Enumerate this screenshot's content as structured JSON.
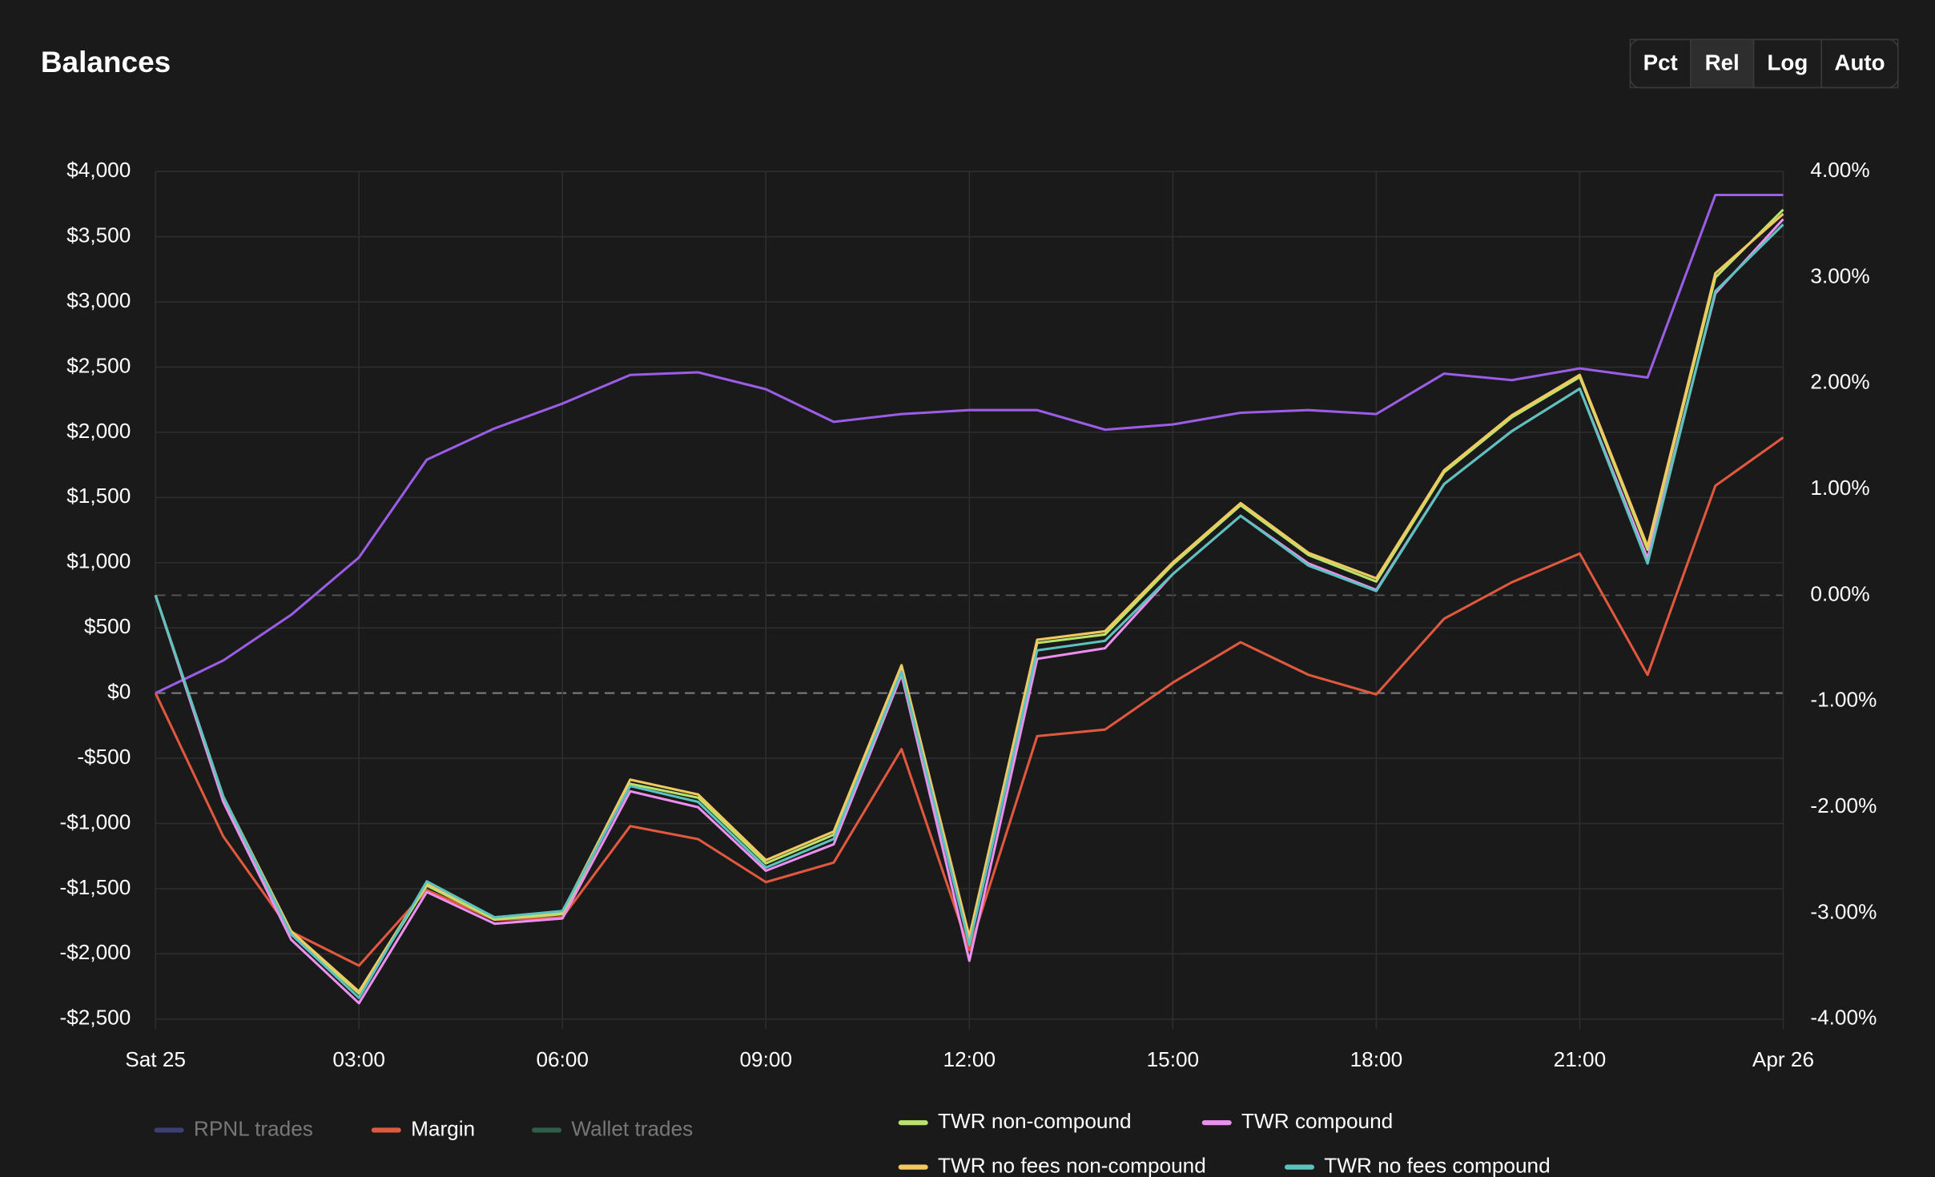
{
  "header": {
    "title": "Balances",
    "buttons": [
      "Pct",
      "Rel",
      "Log",
      "Auto"
    ],
    "active_button": "Rel"
  },
  "chart_data": {
    "type": "line",
    "x": [
      0,
      1,
      2,
      3,
      4,
      5,
      6,
      7,
      8,
      9,
      10,
      11,
      12,
      13,
      14,
      15,
      16,
      17,
      18,
      19,
      20,
      21,
      22,
      23,
      24
    ],
    "xlim": [
      0,
      24
    ],
    "xticks": [
      {
        "value": 0,
        "label": "Sat 25"
      },
      {
        "value": 3,
        "label": "03:00"
      },
      {
        "value": 6,
        "label": "06:00"
      },
      {
        "value": 9,
        "label": "09:00"
      },
      {
        "value": 12,
        "label": "12:00"
      },
      {
        "value": 15,
        "label": "15:00"
      },
      {
        "value": 18,
        "label": "18:00"
      },
      {
        "value": 21,
        "label": "21:00"
      },
      {
        "value": 24,
        "label": "Apr 26"
      }
    ],
    "ylim": [
      -2500,
      4000
    ],
    "yticks": [
      {
        "value": -2500,
        "label": "-$2,500"
      },
      {
        "value": -2000,
        "label": "-$2,000"
      },
      {
        "value": -1500,
        "label": "-$1,500"
      },
      {
        "value": -1000,
        "label": "-$1,000"
      },
      {
        "value": -500,
        "label": "-$500"
      },
      {
        "value": 0,
        "label": "$0"
      },
      {
        "value": 500,
        "label": "$500"
      },
      {
        "value": 1000,
        "label": "$1,000"
      },
      {
        "value": 1500,
        "label": "$1,500"
      },
      {
        "value": 2000,
        "label": "$2,000"
      },
      {
        "value": 2500,
        "label": "$2,500"
      },
      {
        "value": 3000,
        "label": "$3,000"
      },
      {
        "value": 3500,
        "label": "$3,500"
      },
      {
        "value": 4000,
        "label": "$4,000"
      }
    ],
    "y2lim": [
      -4,
      4
    ],
    "y2ticks": [
      {
        "value": -4,
        "label": "-4.00%"
      },
      {
        "value": -3,
        "label": "-3.00%"
      },
      {
        "value": -2,
        "label": "-2.00%"
      },
      {
        "value": -1,
        "label": "-1.00%"
      },
      {
        "value": 0,
        "label": "0.00%"
      },
      {
        "value": 1,
        "label": "1.00%"
      },
      {
        "value": 2,
        "label": "2.00%"
      },
      {
        "value": 3,
        "label": "3.00%"
      },
      {
        "value": 4,
        "label": "4.00%"
      }
    ],
    "grid": true,
    "series": [
      {
        "color": "#9b5de5",
        "values": [
          0,
          250,
          600,
          1040,
          1790,
          2030,
          2220,
          2440,
          2460,
          2330,
          2080,
          2140,
          2170,
          2170,
          2020,
          2060,
          2150,
          2170,
          2140,
          2450,
          2400,
          2490,
          2420,
          3820,
          3820
        ]
      },
      {
        "name": "RPNL trades",
        "color": "#3b3f75",
        "visible": false
      },
      {
        "name": "Margin",
        "color": "#e0583e",
        "values": [
          0,
          -1100,
          -1830,
          -2090,
          -1510,
          -1740,
          -1720,
          -1020,
          -1120,
          -1450,
          -1300,
          -430,
          -1970,
          -330,
          -280,
          80,
          390,
          140,
          -10,
          570,
          850,
          1070,
          140,
          1590,
          1960
        ]
      },
      {
        "name": "Wallet trades",
        "color": "#2e5e4a",
        "visible": false
      },
      {
        "name": "TWR non-compound",
        "color": "#b7e36b",
        "axis": "y2",
        "values": [
          0,
          -1.92,
          -3.19,
          -3.76,
          -2.74,
          -3.06,
          -3.01,
          -1.78,
          -1.91,
          -2.53,
          -2.26,
          -0.69,
          -3.25,
          -0.45,
          -0.37,
          0.29,
          0.85,
          0.38,
          0.13,
          1.16,
          1.68,
          2.06,
          0.43,
          3.0,
          3.64
        ]
      },
      {
        "name": "TWR compound",
        "color": "#ec8ff0",
        "axis": "y2",
        "values": [
          0,
          -1.95,
          -3.25,
          -3.85,
          -2.8,
          -3.1,
          -3.05,
          -1.85,
          -2.0,
          -2.6,
          -2.35,
          -0.75,
          -3.45,
          -0.6,
          -0.5,
          0.2,
          0.75,
          0.3,
          0.05,
          1.05,
          1.55,
          1.95,
          0.35,
          2.85,
          3.55
        ]
      },
      {
        "name": "TWR no fees non-compound",
        "color": "#f2c861",
        "axis": "y2",
        "values": [
          0,
          -1.9,
          -3.17,
          -3.74,
          -2.72,
          -3.04,
          -2.99,
          -1.74,
          -1.88,
          -2.5,
          -2.23,
          -0.66,
          -3.22,
          -0.42,
          -0.34,
          0.31,
          0.87,
          0.4,
          0.16,
          1.18,
          1.7,
          2.08,
          0.46,
          3.04,
          3.6
        ]
      },
      {
        "name": "TWR no fees compound",
        "color": "#5cc2bd",
        "axis": "y2",
        "values": [
          0,
          -1.9,
          -3.2,
          -3.8,
          -2.7,
          -3.04,
          -2.98,
          -1.8,
          -1.95,
          -2.57,
          -2.3,
          -0.72,
          -3.3,
          -0.52,
          -0.43,
          0.2,
          0.75,
          0.28,
          0.04,
          1.05,
          1.55,
          1.95,
          0.3,
          2.87,
          3.5
        ]
      }
    ]
  }
}
